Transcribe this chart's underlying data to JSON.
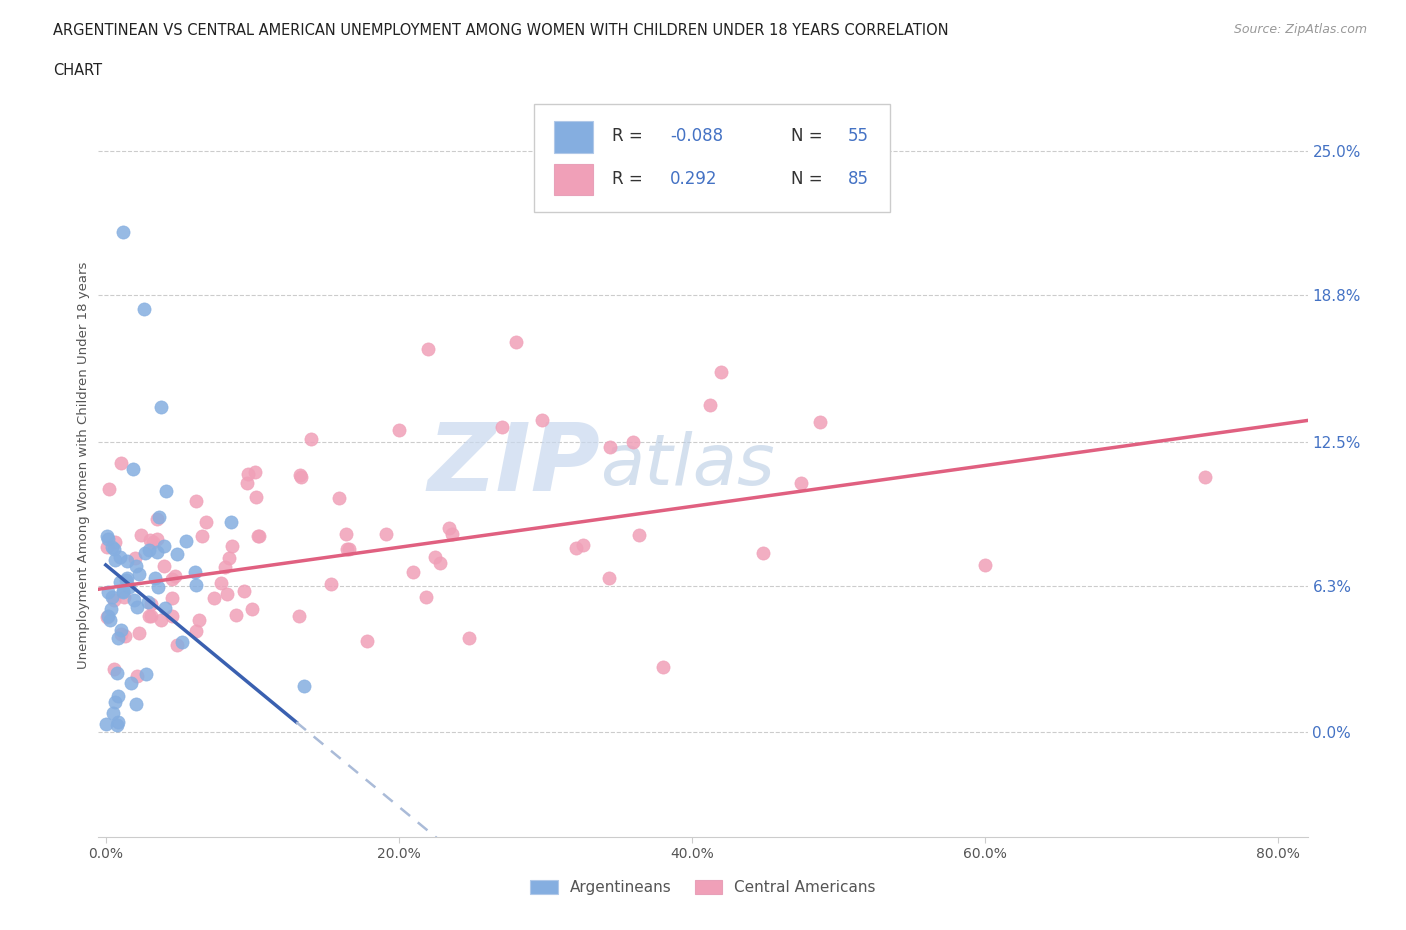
{
  "title_line1": "ARGENTINEAN VS CENTRAL AMERICAN UNEMPLOYMENT AMONG WOMEN WITH CHILDREN UNDER 18 YEARS CORRELATION",
  "title_line2": "CHART",
  "source": "Source: ZipAtlas.com",
  "ylabel": "Unemployment Among Women with Children Under 18 years",
  "yticks": [
    0.0,
    0.063,
    0.125,
    0.188,
    0.25
  ],
  "ytick_labels": [
    "0.0%",
    "6.3%",
    "12.5%",
    "18.8%",
    "25.0%"
  ],
  "xticks": [
    0.0,
    0.2,
    0.4,
    0.6,
    0.8
  ],
  "xtick_labels": [
    "0.0%",
    "20.0%",
    "40.0%",
    "60.0%",
    "80.0%"
  ],
  "color_argentinean": "#85aee0",
  "color_central": "#f0a0b8",
  "color_blue_line": "#3a60b0",
  "color_pink_line": "#e06080",
  "color_dash": "#aabbd8",
  "watermark_zip": "ZIP",
  "watermark_atlas": "atlas",
  "xlim_min": -0.005,
  "xlim_max": 0.82,
  "ylim_min": -0.045,
  "ylim_max": 0.275,
  "arg_intercept": 0.072,
  "arg_slope": -0.52,
  "cen_intercept": 0.062,
  "cen_slope": 0.088
}
